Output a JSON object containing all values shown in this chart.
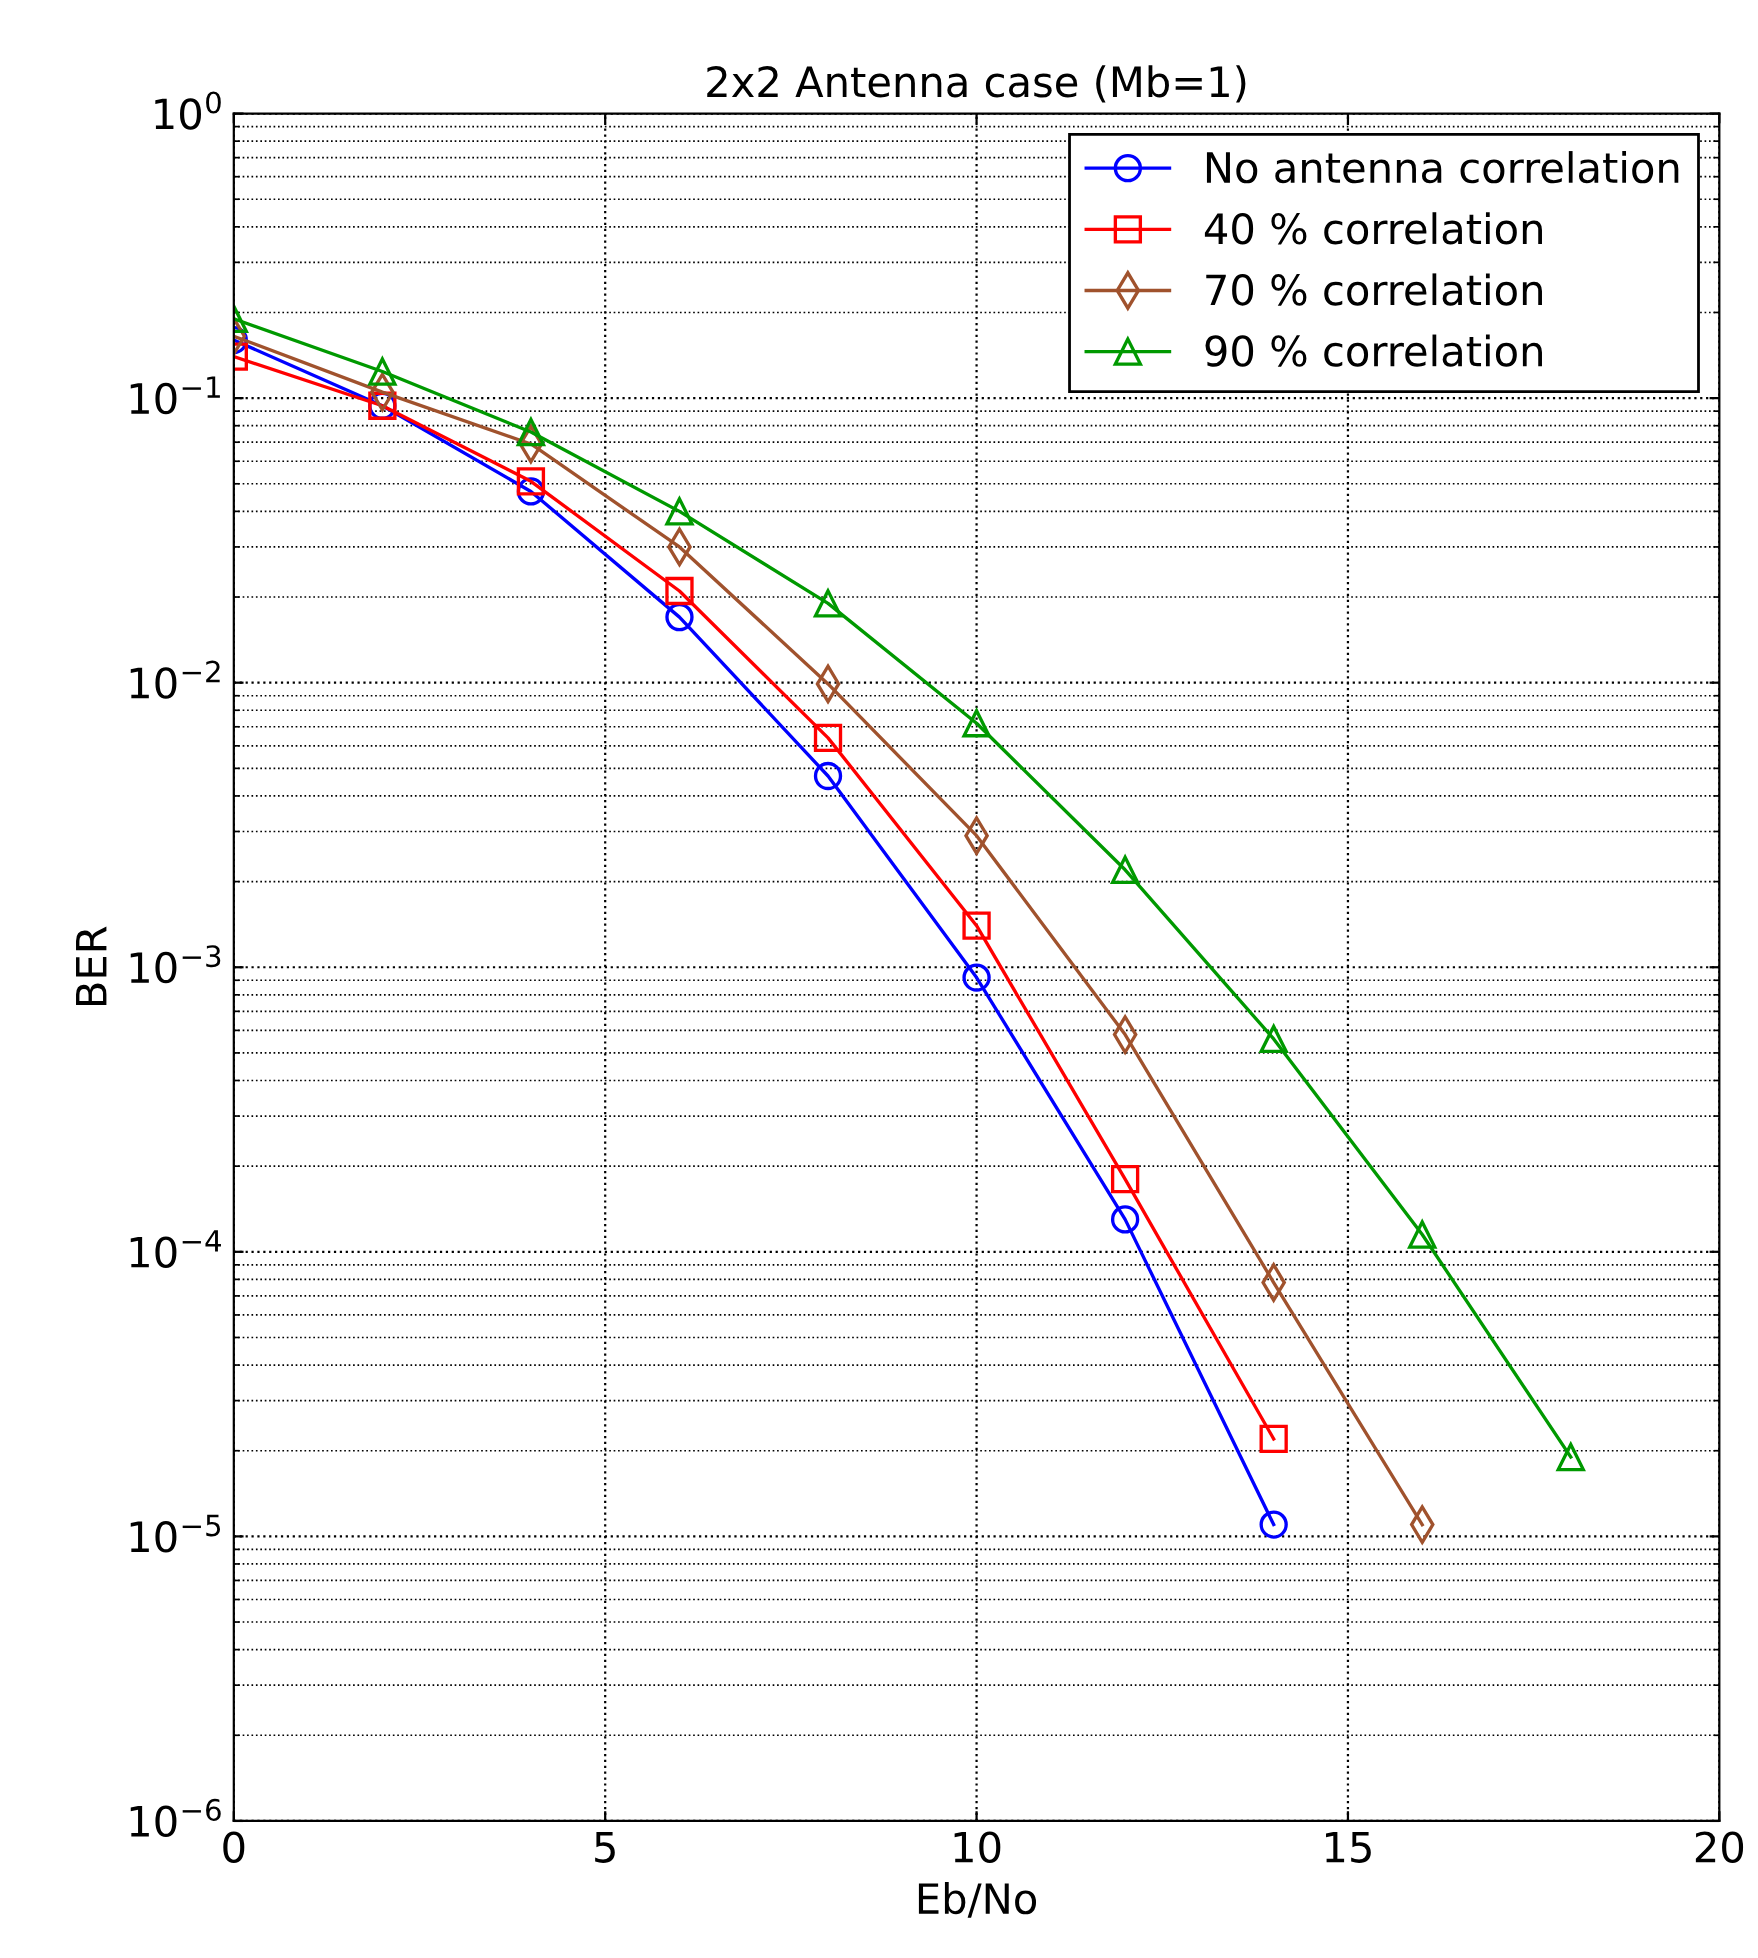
{
  "chart_data": {
    "type": "line",
    "title": "2x2 Antenna case (Mb=1)",
    "xlabel": "Eb/No",
    "ylabel": "BER",
    "log": "y",
    "grid": true,
    "legend": "top right",
    "line_style": "solid",
    "xlim": [
      0,
      20
    ],
    "xticks": [
      0,
      5,
      10,
      15,
      20
    ],
    "ylim": [
      1e-06,
      1
    ],
    "yticks": [
      {
        "value": 1e-06,
        "label": "10$^{−6}$"
      },
      {
        "value": 1e-05,
        "label": "10$^{−5}$"
      },
      {
        "value": 0.0001,
        "label": "10$^{−4}$"
      },
      {
        "value": 0.001,
        "label": "10$^{−3}$"
      },
      {
        "value": 0.01,
        "label": "10$^{−2}$"
      },
      {
        "value": 0.1,
        "label": "10$^{−1}$"
      },
      {
        "value": 1,
        "label": "10$^{0}$"
      }
    ],
    "series": [
      {
        "name": "No antenna correlation",
        "color": "#0000ff",
        "marker": "circle",
        "x": [
          0,
          2,
          4,
          6,
          8,
          10,
          12,
          14
        ],
        "values": [
          0.16,
          0.094,
          0.047,
          0.017,
          0.0047,
          0.00092,
          0.00013,
          1.1e-05
        ]
      },
      {
        "name": "40 % correlation",
        "color": "#ff0000",
        "marker": "square",
        "x": [
          0,
          2,
          4,
          6,
          8,
          10,
          12,
          14
        ],
        "values": [
          0.14,
          0.094,
          0.051,
          0.021,
          0.0064,
          0.0014,
          0.00018,
          2.2e-05
        ]
      },
      {
        "name": "70 % correlation",
        "color": "#a0522d",
        "marker": "diamond",
        "x": [
          0,
          2,
          4,
          6,
          8,
          10,
          12,
          14,
          16
        ],
        "values": [
          0.165,
          0.105,
          0.069,
          0.03,
          0.0099,
          0.0029,
          0.00058,
          7.8e-05,
          1.1e-05
        ]
      },
      {
        "name": "90 % correlation",
        "color": "#009900",
        "marker": "triangle",
        "x": [
          0,
          2,
          4,
          6,
          8,
          10,
          12,
          14,
          16,
          18
        ],
        "values": [
          0.19,
          0.124,
          0.076,
          0.04,
          0.019,
          0.0072,
          0.0022,
          0.00056,
          0.000115,
          1.9e-05
        ]
      }
    ]
  }
}
